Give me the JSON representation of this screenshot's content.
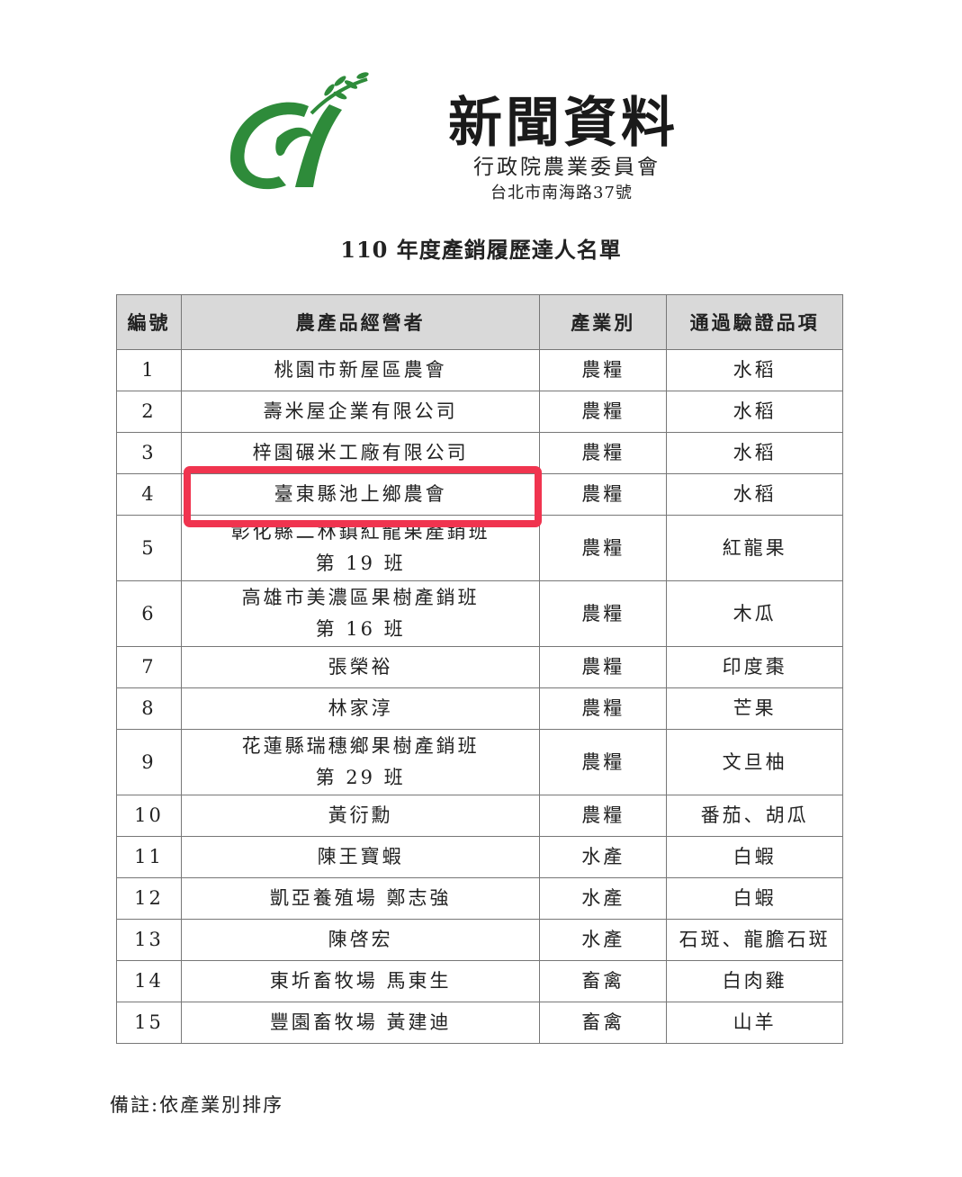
{
  "header": {
    "title": "新聞資料",
    "organization": "行政院農業委員會",
    "address": "台北市南海路37號",
    "logo_color": "#2e8b3a"
  },
  "list_title": "110 年度產銷履歷達人名單",
  "table": {
    "columns": [
      "編號",
      "農產品經營者",
      "產業別",
      "通過驗證品項"
    ],
    "rows": [
      {
        "no": "1",
        "operator": "桃園市新屋區農會",
        "industry": "農糧",
        "item": "水稻"
      },
      {
        "no": "2",
        "operator": "壽米屋企業有限公司",
        "industry": "農糧",
        "item": "水稻"
      },
      {
        "no": "3",
        "operator": "梓園碾米工廠有限公司",
        "industry": "農糧",
        "item": "水稻"
      },
      {
        "no": "4",
        "operator": "臺東縣池上鄉農會",
        "industry": "農糧",
        "item": "水稻"
      },
      {
        "no": "5",
        "operator": "彰化縣二林鎮紅龍果產銷班",
        "operator_line2": "第 19 班",
        "industry": "農糧",
        "item": "紅龍果"
      },
      {
        "no": "6",
        "operator": "高雄市美濃區果樹產銷班",
        "operator_line2": "第 16 班",
        "industry": "農糧",
        "item": "木瓜"
      },
      {
        "no": "7",
        "operator": "張榮裕",
        "industry": "農糧",
        "item": "印度棗"
      },
      {
        "no": "8",
        "operator": "林家淳",
        "industry": "農糧",
        "item": "芒果"
      },
      {
        "no": "9",
        "operator": "花蓮縣瑞穗鄉果樹產銷班",
        "operator_line2": "第 29 班",
        "industry": "農糧",
        "item": "文旦柚"
      },
      {
        "no": "10",
        "operator": "黃衍勳",
        "industry": "農糧",
        "item": "番茄、胡瓜"
      },
      {
        "no": "11",
        "operator": "陳王寶蝦",
        "industry": "水產",
        "item": "白蝦"
      },
      {
        "no": "12",
        "operator": "凱亞養殖場 鄭志強",
        "industry": "水產",
        "item": "白蝦"
      },
      {
        "no": "13",
        "operator": "陳啓宏",
        "industry": "水產",
        "item": "石斑、龍膽石斑"
      },
      {
        "no": "14",
        "operator": "東圻畜牧場 馬東生",
        "industry": "畜禽",
        "item": "白肉雞"
      },
      {
        "no": "15",
        "operator": "豐園畜牧場 黃建迪",
        "industry": "畜禽",
        "item": "山羊"
      }
    ],
    "highlight_row": 4,
    "highlight_color": "#f0344f"
  },
  "note": "備註:依產業別排序"
}
